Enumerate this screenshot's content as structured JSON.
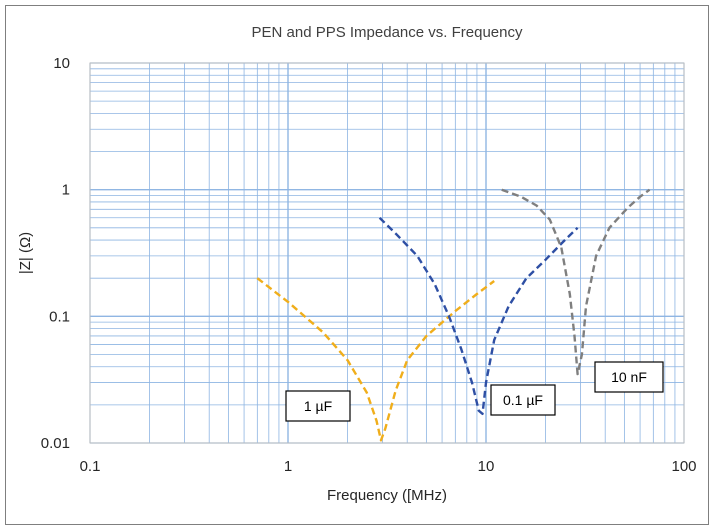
{
  "chart_data": {
    "type": "line",
    "title": "PEN and PPS Impedance vs. Frequency",
    "xlabel": "Frequency ([MHz)",
    "ylabel": "|Z| (Ω)",
    "x_scale": "log",
    "y_scale": "log",
    "xlim": [
      0.1,
      100
    ],
    "ylim": [
      0.01,
      10
    ],
    "x_ticks": [
      "0.1",
      "1",
      "10",
      "100"
    ],
    "y_ticks": [
      "0.01",
      "0.1",
      "1",
      "10"
    ],
    "grid": true,
    "line_style": "dashed",
    "series": [
      {
        "name": "1 µF",
        "color": "#F0AE1B",
        "points": [
          [
            0.7,
            0.2
          ],
          [
            1.0,
            0.13
          ],
          [
            1.5,
            0.075
          ],
          [
            2.0,
            0.045
          ],
          [
            2.5,
            0.025
          ],
          [
            2.8,
            0.015
          ],
          [
            2.95,
            0.0105
          ],
          [
            3.1,
            0.013
          ],
          [
            3.5,
            0.026
          ],
          [
            4.0,
            0.045
          ],
          [
            5.0,
            0.07
          ],
          [
            7.0,
            0.11
          ],
          [
            9.0,
            0.15
          ],
          [
            11.0,
            0.19
          ]
        ]
      },
      {
        "name": "0.1 µF",
        "color": "#2E4FA4",
        "points": [
          [
            2.9,
            0.6
          ],
          [
            3.5,
            0.45
          ],
          [
            4.5,
            0.3
          ],
          [
            5.5,
            0.18
          ],
          [
            6.5,
            0.1
          ],
          [
            7.5,
            0.055
          ],
          [
            8.5,
            0.03
          ],
          [
            9.2,
            0.018
          ],
          [
            9.6,
            0.017
          ],
          [
            10.0,
            0.03
          ],
          [
            11.0,
            0.065
          ],
          [
            13.0,
            0.12
          ],
          [
            16.0,
            0.2
          ],
          [
            20.0,
            0.28
          ],
          [
            25.0,
            0.4
          ],
          [
            29.0,
            0.5
          ]
        ]
      },
      {
        "name": "10 nF",
        "color": "#7F7F7F",
        "points": [
          [
            12.0,
            1.0
          ],
          [
            15.0,
            0.88
          ],
          [
            18.0,
            0.75
          ],
          [
            21.0,
            0.58
          ],
          [
            24.0,
            0.35
          ],
          [
            26.5,
            0.15
          ],
          [
            28.0,
            0.07
          ],
          [
            29.0,
            0.035
          ],
          [
            30.5,
            0.05
          ],
          [
            32.0,
            0.12
          ],
          [
            36.0,
            0.3
          ],
          [
            42.0,
            0.5
          ],
          [
            52.0,
            0.72
          ],
          [
            60.0,
            0.88
          ],
          [
            67.0,
            1.0
          ]
        ]
      }
    ],
    "annotations": [
      {
        "text": "1 µF"
      },
      {
        "text": "0.1 µF"
      },
      {
        "text": "10 nF"
      }
    ]
  }
}
